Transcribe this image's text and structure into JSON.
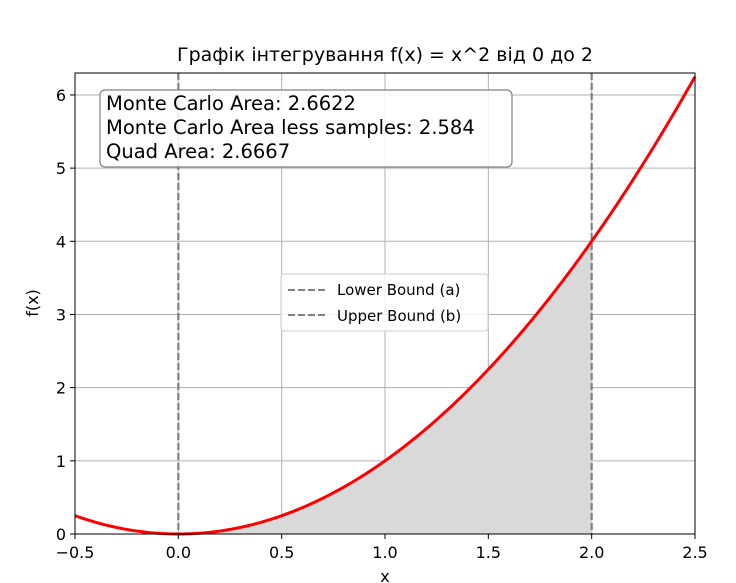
{
  "chart_data": {
    "type": "line",
    "title": "Графік інтегрування f(x) = x^2 від 0 до 2",
    "xlabel": "x",
    "ylabel": "f(x)",
    "xlim": [
      -0.5,
      2.5
    ],
    "ylim": [
      0,
      6.3
    ],
    "grid": true,
    "legend_placement": "center",
    "x_ticks": [
      "−0.5",
      "0.0",
      "0.5",
      "1.0",
      "1.5",
      "2.0",
      "2.5"
    ],
    "y_ticks": [
      "0",
      "1",
      "2",
      "3",
      "4",
      "5",
      "6"
    ],
    "x_tick_values": [
      -0.5,
      0.0,
      0.5,
      1.0,
      1.5,
      2.0,
      2.5
    ],
    "y_tick_values": [
      0,
      1,
      2,
      3,
      4,
      5,
      6
    ],
    "series": [
      {
        "label": "f(x) = x^2",
        "color": "#ff0000",
        "x": [
          -0.5,
          -0.25,
          0.0,
          0.25,
          0.5,
          0.75,
          1.0,
          1.25,
          1.5,
          1.75,
          2.0,
          2.25,
          2.5
        ],
        "y": [
          0.25,
          0.0625,
          0.0,
          0.0625,
          0.25,
          0.5625,
          1.0,
          1.5625,
          2.25,
          3.0625,
          4.0,
          5.0625,
          6.25
        ]
      }
    ],
    "shaded_area": {
      "from": 0,
      "to": 2,
      "color": "#d9d9d9"
    },
    "vlines": [
      {
        "name": "Lower Bound (a)",
        "x": 0,
        "color": "#808080",
        "style": "dashed"
      },
      {
        "name": "Upper Bound (b)",
        "x": 2,
        "color": "#808080",
        "style": "dashed"
      }
    ],
    "annotation_lines": [
      "Monte Carlo Area: 2.6622",
      "Monte Carlo Area less samples: 2.584",
      "Quad Area: 2.6667"
    ],
    "legend": [
      "Lower Bound (a)",
      "Upper Bound (b)"
    ]
  }
}
